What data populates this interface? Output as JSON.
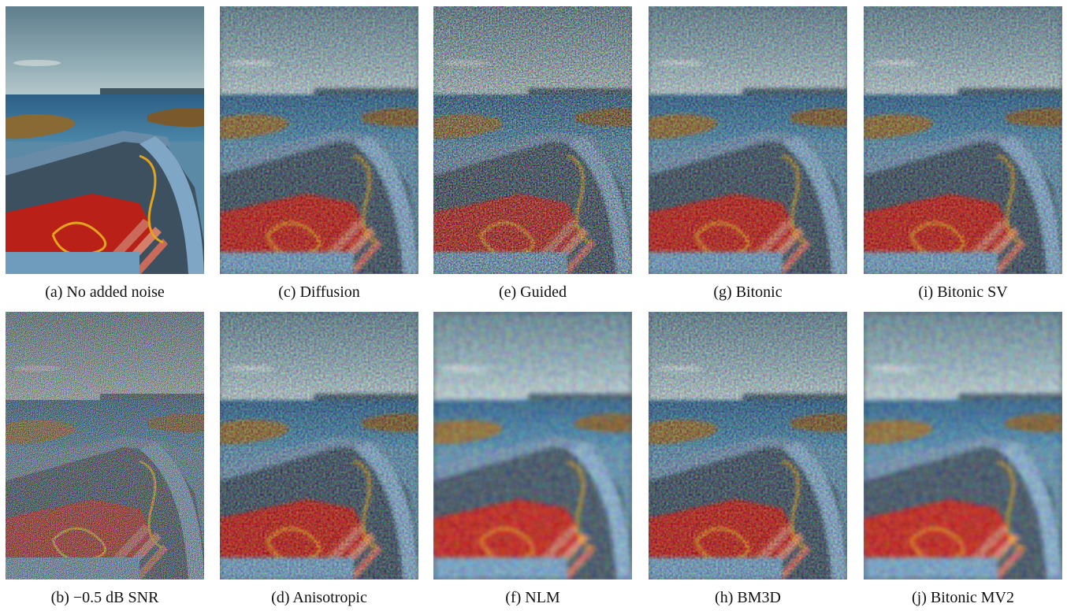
{
  "figure": {
    "panels": [
      {
        "caption": "(a) No added noise"
      },
      {
        "caption": "(c) Diffusion"
      },
      {
        "caption": "(e) Guided"
      },
      {
        "caption": "(g) Bitonic"
      },
      {
        "caption": "(i) Bitonic SV"
      },
      {
        "caption": "(b) −0.5 dB SNR"
      },
      {
        "caption": "(d) Anisotropic"
      },
      {
        "caption": "(f) NLM"
      },
      {
        "caption": "(h) BM3D"
      },
      {
        "caption": "(j) Bitonic MV2"
      }
    ]
  }
}
